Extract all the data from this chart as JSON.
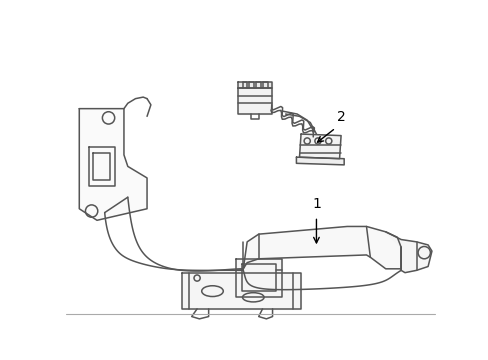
{
  "background_color": "#ffffff",
  "line_color": "#555555",
  "line_width": 1.1,
  "label_1": "1",
  "label_2": "2",
  "label_fontsize": 10,
  "figsize": [
    4.89,
    3.6
  ],
  "dpi": 100,
  "border_color": "#aaaaaa",
  "border_lw": 0.8
}
